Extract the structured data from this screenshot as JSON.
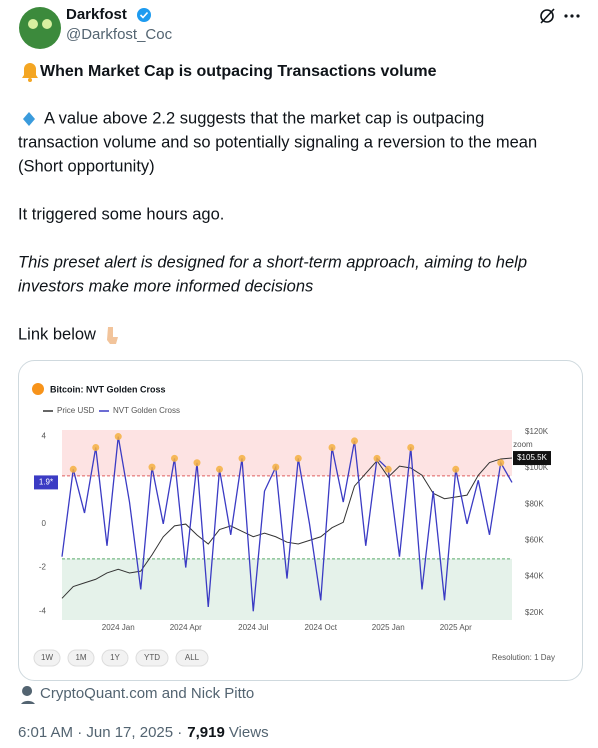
{
  "header": {
    "name": "Darkfost",
    "handle": "@Darkfost_Coc"
  },
  "post": {
    "title": "When Market Cap is outpacing Transactions volume",
    "lines": [
      "A value above 2.2 suggests that the market cap is outpacing",
      "transaction volume and so potentially signaling a reversion to the mean",
      "(Short opportunity)",
      "It triggered some hours ago."
    ],
    "italic_lines": [
      "This preset alert is designed for a short-term approach, aiming to help",
      "investors make more informed decisions"
    ],
    "link": "Link below"
  },
  "chart_data": {
    "type": "line",
    "title": "Bitcoin: NVT Golden Cross",
    "categories": [
      null,
      null,
      null,
      null,
      null,
      "2024 Jan",
      null,
      null,
      null,
      null,
      null,
      "2024 Apr",
      null,
      null,
      null,
      null,
      null,
      "2024 Jul",
      null,
      null,
      null,
      null,
      null,
      "2024 Oct",
      null,
      null,
      null,
      null,
      null,
      "2025 Jan",
      null,
      null,
      null,
      null,
      null,
      "2025 Apr",
      null,
      null,
      null,
      null,
      null
    ],
    "series": [
      {
        "name": "Price USD",
        "color": "#333333",
        "axis": "y2",
        "values": [
          28000,
          34500,
          36500,
          38500,
          42000,
          44000,
          42000,
          43000,
          52000,
          62000,
          68000,
          69000,
          63000,
          58000,
          66000,
          68000,
          65000,
          62000,
          64000,
          62000,
          59000,
          58000,
          60000,
          62000,
          67000,
          70000,
          90000,
          97000,
          104000,
          95000,
          101000,
          100000,
          96000,
          86000,
          83000,
          84000,
          85000,
          96000,
          103000,
          105000,
          105500
        ]
      },
      {
        "name": "NVT Golden Cross",
        "color": "#3b3bc4",
        "values": [
          -1.5,
          2.5,
          0.5,
          3.5,
          -1,
          4,
          1,
          -3,
          2.6,
          0,
          3,
          -2,
          2.8,
          -3.8,
          2.5,
          -0.5,
          3,
          -4,
          1.5,
          2.6,
          -2.5,
          3,
          0,
          -3.5,
          3.5,
          1,
          3.8,
          -1,
          3,
          2.5,
          -1.5,
          3.5,
          -3,
          1.5,
          -3.5,
          2.5,
          0,
          2,
          -0.5,
          2.8,
          1.9
        ]
      }
    ],
    "ylim": [
      -4.4,
      4.3
    ],
    "yticks": [
      -4,
      -2,
      0,
      4
    ],
    "y2lim": [
      16000,
      121000
    ],
    "y2ticks": [
      {
        "value": 20000,
        "label": "$20K"
      },
      {
        "value": 40000,
        "label": "$40K"
      },
      {
        "value": 60000,
        "label": "$60K"
      },
      {
        "value": 80000,
        "label": "$80K"
      },
      {
        "value": 100000,
        "label": "$100K"
      },
      {
        "value": 120000,
        "label": "$120K"
      }
    ],
    "upper_band": 2.2,
    "lower_band": -1.6,
    "current_tag": {
      "value": 1.9,
      "label": "1.9*"
    },
    "price_tag": {
      "value": 105500,
      "label": "$105.5K"
    },
    "signal_color": "#f5b041",
    "grid": false,
    "reset": "Reset zoom",
    "buttons": [
      "1W",
      "1M",
      "1Y",
      "YTD",
      "ALL"
    ],
    "resolution": "Resolution: 1 Day"
  },
  "attribution": "CryptoQuant.com and Nick Pitto",
  "footer": {
    "time": "6:01 AM · Jun 17, 2025 ·",
    "views": "7,919",
    "views_label": "Views"
  }
}
